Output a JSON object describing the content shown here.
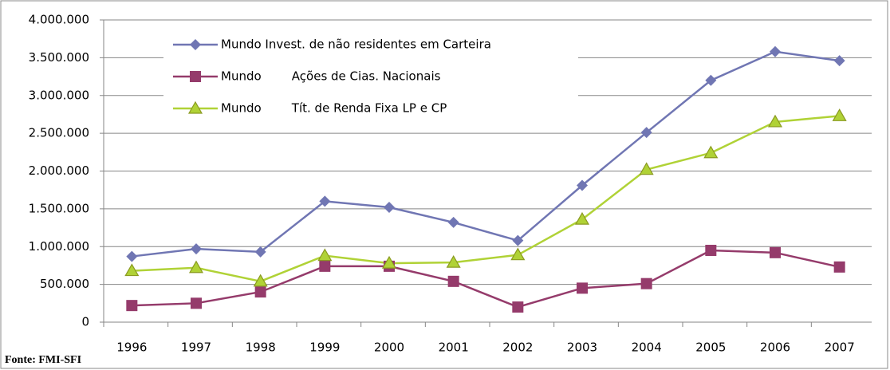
{
  "chart_data": {
    "type": "line",
    "categories": [
      "1996",
      "1997",
      "1998",
      "1999",
      "2000",
      "2001",
      "2002",
      "2003",
      "2004",
      "2005",
      "2006",
      "2007"
    ],
    "series": [
      {
        "name": "Mundo Invest. de não residentes em Carteira",
        "color": "#7076b3",
        "marker": "diamond",
        "values": [
          870000,
          970000,
          930000,
          1600000,
          1520000,
          1320000,
          1080000,
          1810000,
          2510000,
          3200000,
          3580000,
          3460000
        ]
      },
      {
        "name": "Mundo        Ações de Cias. Nacionais",
        "color": "#953b6b",
        "marker": "square",
        "values": [
          220000,
          250000,
          400000,
          740000,
          740000,
          540000,
          200000,
          450000,
          510000,
          950000,
          920000,
          730000
        ]
      },
      {
        "name": "Mundo        Tít. de Renda Fixa LP e CP",
        "color": "#b0d236",
        "marker": "triangle",
        "values": [
          680000,
          720000,
          540000,
          880000,
          780000,
          790000,
          890000,
          1360000,
          2020000,
          2240000,
          2650000,
          2730000
        ]
      }
    ],
    "ylim": [
      0,
      4000000
    ],
    "yticks": [
      0,
      {
        "value": 500000,
        "label": "500.000"
      },
      {
        "value": 1000000,
        "label": "1.000.000"
      },
      {
        "value": 1500000,
        "label": "1.500.000"
      },
      {
        "value": 2000000,
        "label": "2.000.000"
      },
      {
        "value": 2500000,
        "label": "2.500.000"
      },
      {
        "value": 3000000,
        "label": "3.000.000"
      },
      {
        "value": 3500000,
        "label": "3.500.000"
      },
      {
        "value": 4000000,
        "label": "4.000.000"
      }
    ],
    "grid": true,
    "legend": "top-left",
    "source": "Fonte: FMI-SFI"
  }
}
